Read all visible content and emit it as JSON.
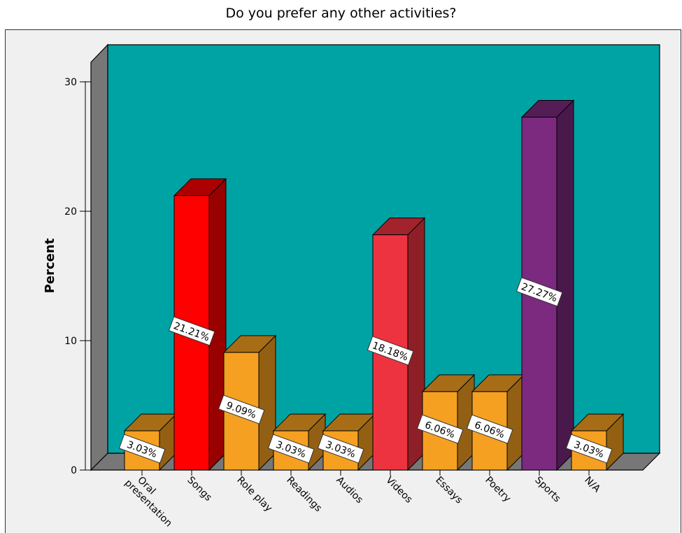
{
  "chart_data": {
    "type": "bar",
    "title": "Do you prefer any other activities?",
    "xlabel": "",
    "ylabel": "Percent",
    "ylim": [
      0,
      30
    ],
    "yticks": [
      0,
      10,
      20,
      30
    ],
    "grid": false,
    "categories": [
      "Oral presentation",
      "Songs",
      "Role play",
      "Readings",
      "Audios",
      "Videos",
      "Essays",
      "Poetry",
      "Sports",
      "N/A"
    ],
    "values": [
      3.03,
      21.21,
      9.09,
      3.03,
      3.03,
      18.18,
      6.06,
      6.06,
      27.27,
      3.03
    ],
    "data_labels": [
      "3.03%",
      "21.21%",
      "9.09%",
      "3.03%",
      "3.03%",
      "18.18%",
      "6.06%",
      "6.06%",
      "27.27%",
      "3.03%"
    ],
    "colors": {
      "plot_background": "#00A3A3",
      "outer_background": "#F0F0F0",
      "default_bar": "#F5A020",
      "Songs": "#FF0000",
      "Videos": "#EE3340",
      "Sports": "#7B2A7F"
    }
  }
}
